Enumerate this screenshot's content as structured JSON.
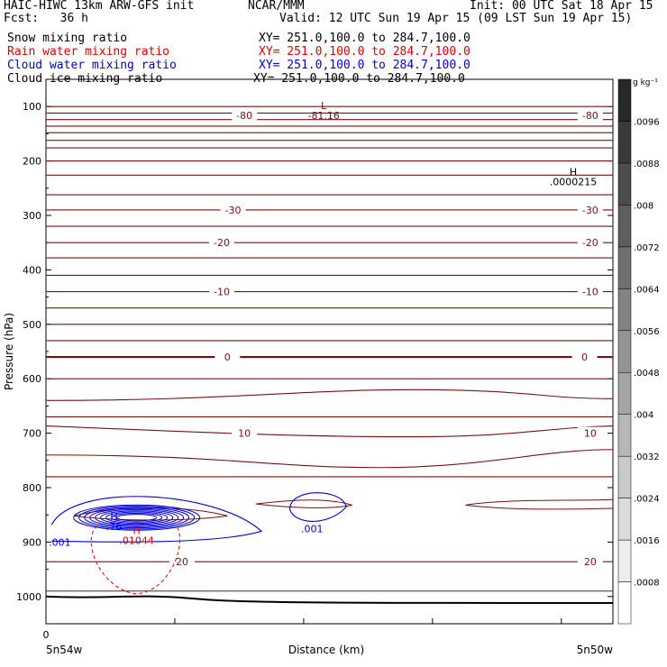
{
  "header": {
    "model": "HAIC-HIWC 13km ARW-GFS init",
    "org": "NCAR/MMM",
    "init": "Init: 00 UTC Sat 18 Apr 15",
    "fcst": "Fcst:   36 h",
    "valid": "Valid: 12 UTC Sun 19 Apr 15 (09 LST Sun 19 Apr 15)"
  },
  "fields": [
    {
      "label": "Snow mixing ratio",
      "xy": "XY= 251.0,100.0 to 284.7,100.0",
      "color": "#000000"
    },
    {
      "label": "Rain water mixing ratio",
      "xy": "XY= 251.0,100.0 to 284.7,100.0",
      "color": "#e00000"
    },
    {
      "label": "Cloud water mixing ratio",
      "xy": "XY= 251.0,100.0 to 284.7,100.0",
      "color": "#0000e0"
    },
    {
      "label": "Cloud ice mixing ratio",
      "xy": "XY= 251.0,100.0 to 284.7,100.0",
      "color": "#000000"
    }
  ],
  "chart_data": {
    "type": "contour",
    "ylabel": "Pressure (hPa)",
    "xlabel": "Distance (km)",
    "yticks": [
      100,
      200,
      300,
      400,
      500,
      600,
      700,
      800,
      900,
      1000
    ],
    "ylim": [
      50,
      1050
    ],
    "x_tick_zero": "0",
    "x_left_label": "5n54w",
    "x_right_label": "5n50w",
    "temperature_color": "#7a1010",
    "temperature_labels": [
      {
        "value": "-80",
        "p": 116,
        "xf": 0.35
      },
      {
        "value": "-80",
        "p": 116,
        "xf": 0.96
      },
      {
        "value": "-30",
        "p": 290,
        "xf": 0.33
      },
      {
        "value": "-30",
        "p": 290,
        "xf": 0.96
      },
      {
        "value": "-20",
        "p": 350,
        "xf": 0.31
      },
      {
        "value": "-20",
        "p": 350,
        "xf": 0.96
      },
      {
        "value": "-10",
        "p": 440,
        "xf": 0.31
      },
      {
        "value": "-10",
        "p": 440,
        "xf": 0.96
      },
      {
        "value": "0",
        "p": 560,
        "xf": 0.32
      },
      {
        "value": "0",
        "p": 560,
        "xf": 0.95
      },
      {
        "value": "10",
        "p": 700,
        "xf": 0.35
      },
      {
        "value": "10",
        "p": 700,
        "xf": 0.96
      },
      {
        "value": "20",
        "p": 936,
        "xf": 0.24
      },
      {
        "value": "20",
        "p": 936,
        "xf": 0.96
      }
    ],
    "extrema": [
      {
        "symbol": "L",
        "value": "-81.16",
        "p": 105,
        "xf": 0.49,
        "color": "#7a1010"
      },
      {
        "symbol": "H",
        "value": ".0000215",
        "p": 226,
        "xf": 0.93,
        "color": "#000000"
      },
      {
        "symbol": "H",
        "value": ".76",
        "p": 860,
        "xf": 0.12,
        "color": "#0000e0"
      },
      {
        "symbol": "H",
        "value": ".01044",
        "p": 885,
        "xf": 0.16,
        "color": "#e00000"
      }
    ],
    "cloud_water_labels": [
      ".001",
      ".001"
    ],
    "colorbar": {
      "unit": "g kg⁻¹",
      "values": [
        ".0008",
        ".0016",
        ".0024",
        ".0032",
        ".004",
        ".0048",
        ".0056",
        ".0064",
        ".0072",
        ".008",
        ".0088",
        ".0096"
      ]
    }
  }
}
